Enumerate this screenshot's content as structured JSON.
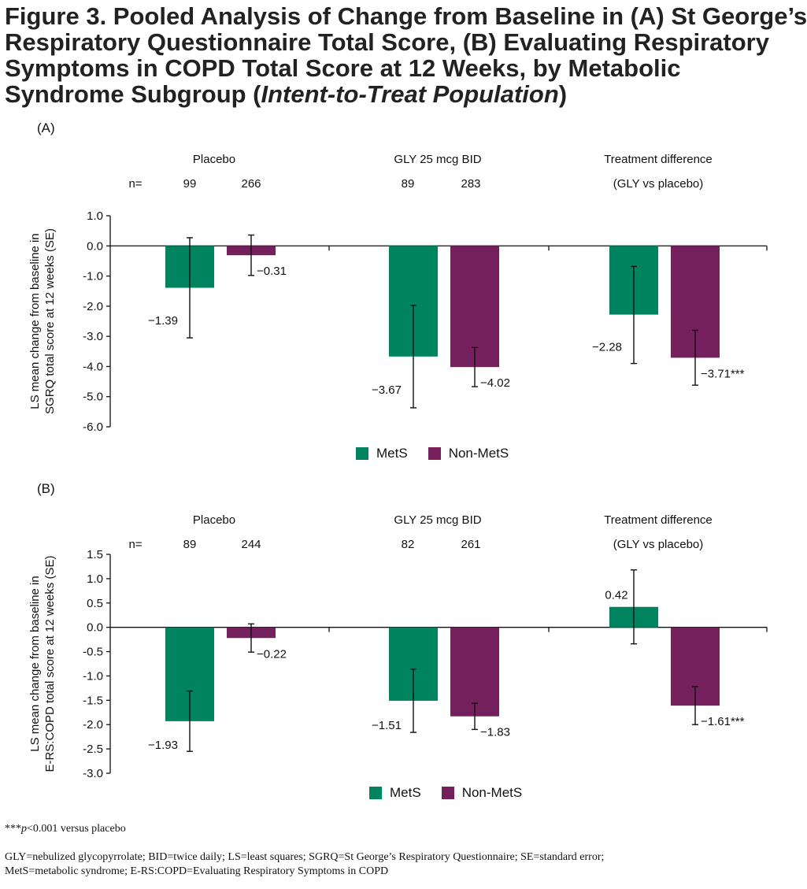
{
  "title": {
    "line1": "Figure 3. Pooled Analysis of Change from Baseline in (A) St George’s",
    "line2": "Respiratory Questionnaire Total Score, (B) Evaluating Respiratory",
    "line3": "Symptoms in COPD Total Score at 12 Weeks, by Metabolic",
    "line4_pre": "Syndrome Subgroup (",
    "line4_italic": "Intent-to-Treat Population",
    "line4_post": ")"
  },
  "colors": {
    "mets": "#00845f",
    "non_mets": "#74205d",
    "axis": "#111111"
  },
  "legend": {
    "mets": "MetS",
    "non_mets": "Non-MetS"
  },
  "chart_data": [
    {
      "type": "bar",
      "panel_label": "(A)",
      "ylabel_line1": "LS mean change from baseline in",
      "ylabel_line2": "SGRQ total score at 12 weeks (SE)",
      "ylim": [
        -6.0,
        1.0
      ],
      "yticks": [
        "1.0",
        "0.0",
        "-1.0",
        "-2.0",
        "-3.0",
        "-4.0",
        "-5.0",
        "-6.0"
      ],
      "ytick_values": [
        1,
        0,
        -1,
        -2,
        -3,
        -4,
        -5,
        -6
      ],
      "n_label": "n=",
      "groups": [
        {
          "name": "Placebo",
          "name2": "",
          "n": [
            "99",
            "266"
          ]
        },
        {
          "name": "GLY 25 mcg BID",
          "name2": "",
          "n": [
            "89",
            "283"
          ]
        },
        {
          "name": "Treatment difference",
          "name2": "(GLY vs placebo)",
          "n": [
            "",
            ""
          ]
        }
      ],
      "series": [
        {
          "name": "MetS",
          "values": [
            -1.39,
            -3.67,
            -2.28
          ],
          "err_low": [
            -3.05,
            -5.37,
            -3.9
          ],
          "err_high": [
            0.27,
            -1.97,
            -0.68
          ],
          "labels": [
            "−1.39",
            "−3.67",
            "−2.28"
          ]
        },
        {
          "name": "Non-MetS",
          "values": [
            -0.31,
            -4.02,
            -3.71
          ],
          "err_low": [
            -0.98,
            -4.67,
            -4.62
          ],
          "err_high": [
            0.36,
            -3.37,
            -2.8
          ],
          "labels": [
            "−0.31",
            "−4.02",
            "−3.71***"
          ]
        }
      ]
    },
    {
      "type": "bar",
      "panel_label": "(B)",
      "ylabel_line1": "LS mean change from baseline in",
      "ylabel_line2": "E-RS:COPD total score at 12 weeks (SE)",
      "ylim": [
        -3.0,
        1.5
      ],
      "yticks": [
        "1.5",
        "1.0",
        "0.5",
        "0.0",
        "-0.5",
        "-1.0",
        "-1.5",
        "-2.0",
        "-2.5",
        "-3.0"
      ],
      "ytick_values": [
        1.5,
        1,
        0.5,
        0,
        -0.5,
        -1,
        -1.5,
        -2,
        -2.5,
        -3
      ],
      "n_label": "n=",
      "groups": [
        {
          "name": "Placebo",
          "name2": "",
          "n": [
            "89",
            "244"
          ]
        },
        {
          "name": "GLY 25 mcg BID",
          "name2": "",
          "n": [
            "82",
            "261"
          ]
        },
        {
          "name": "Treatment difference",
          "name2": "(GLY vs placebo)",
          "n": [
            "",
            ""
          ]
        }
      ],
      "series": [
        {
          "name": "MetS",
          "values": [
            -1.93,
            -1.51,
            0.42
          ],
          "err_low": [
            -2.55,
            -2.16,
            -0.34
          ],
          "err_high": [
            -1.31,
            -0.86,
            1.18
          ],
          "labels": [
            "−1.93",
            "−1.51",
            "0.42"
          ]
        },
        {
          "name": "Non-MetS",
          "values": [
            -0.22,
            -1.83,
            -1.61
          ],
          "err_low": [
            -0.51,
            -2.1,
            -2.0
          ],
          "err_high": [
            0.07,
            -1.56,
            -1.22
          ],
          "labels": [
            "−0.22",
            "−1.83",
            "−1.61***"
          ]
        }
      ]
    }
  ],
  "footnote1_sup": "***",
  "footnote1_p": "p",
  "footnote1_rest": "<0.001 versus placebo",
  "footnote2_line1": "GLY=nebulized glycopyrrolate; BID=twice daily; LS=least squares; SGRQ=St George’s Respiratory Questionnaire; SE=standard error;",
  "footnote2_line2": "MetS=metabolic syndrome; E-RS:COPD=Evaluating Respiratory Symptoms in COPD"
}
